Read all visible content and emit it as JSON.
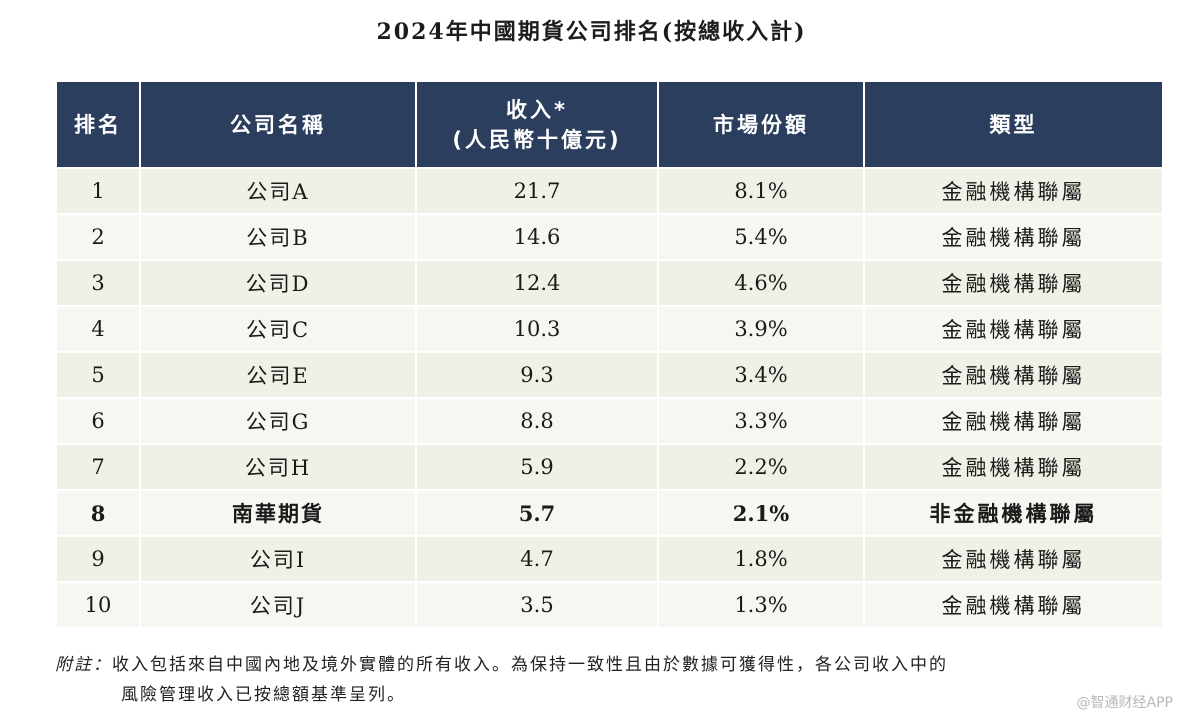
{
  "title": "2024年中國期貨公司排名(按總收入計)",
  "table": {
    "headers": {
      "rank": "排名",
      "company": "公司名稱",
      "revenue_line1": "收入*",
      "revenue_line2": "(人民幣十億元)",
      "market_share": "市場份額",
      "type": "類型"
    },
    "rows": [
      {
        "rank": "1",
        "company": "公司A",
        "revenue": "21.7",
        "share": "8.1%",
        "type": "金融機構聯屬"
      },
      {
        "rank": "2",
        "company": "公司B",
        "revenue": "14.6",
        "share": "5.4%",
        "type": "金融機構聯屬"
      },
      {
        "rank": "3",
        "company": "公司D",
        "revenue": "12.4",
        "share": "4.6%",
        "type": "金融機構聯屬"
      },
      {
        "rank": "4",
        "company": "公司C",
        "revenue": "10.3",
        "share": "3.9%",
        "type": "金融機構聯屬"
      },
      {
        "rank": "5",
        "company": "公司E",
        "revenue": "9.3",
        "share": "3.4%",
        "type": "金融機構聯屬"
      },
      {
        "rank": "6",
        "company": "公司G",
        "revenue": "8.8",
        "share": "3.3%",
        "type": "金融機構聯屬"
      },
      {
        "rank": "7",
        "company": "公司H",
        "revenue": "5.9",
        "share": "2.2%",
        "type": "金融機構聯屬"
      },
      {
        "rank": "8",
        "company": "南華期貨",
        "revenue": "5.7",
        "share": "2.1%",
        "type": "非金融機構聯屬"
      },
      {
        "rank": "9",
        "company": "公司I",
        "revenue": "4.7",
        "share": "1.8%",
        "type": "金融機構聯屬"
      },
      {
        "rank": "10",
        "company": "公司J",
        "revenue": "3.5",
        "share": "1.3%",
        "type": "金融機構聯屬"
      }
    ],
    "highlight_rank": "8"
  },
  "note": {
    "label": "附註：",
    "line1": "收入包括來自中國內地及境外實體的所有收入。為保持一致性且由於數據可獲得性，各公司收入中的",
    "line2": "風險管理收入已按總額基準呈列。"
  },
  "watermark": "@智通财经APP",
  "colors": {
    "header_bg": "#2c3e5e",
    "header_text": "#ffffff",
    "row_odd_bg": "#f1f0e7",
    "row_even_bg": "#f7f7f1"
  }
}
